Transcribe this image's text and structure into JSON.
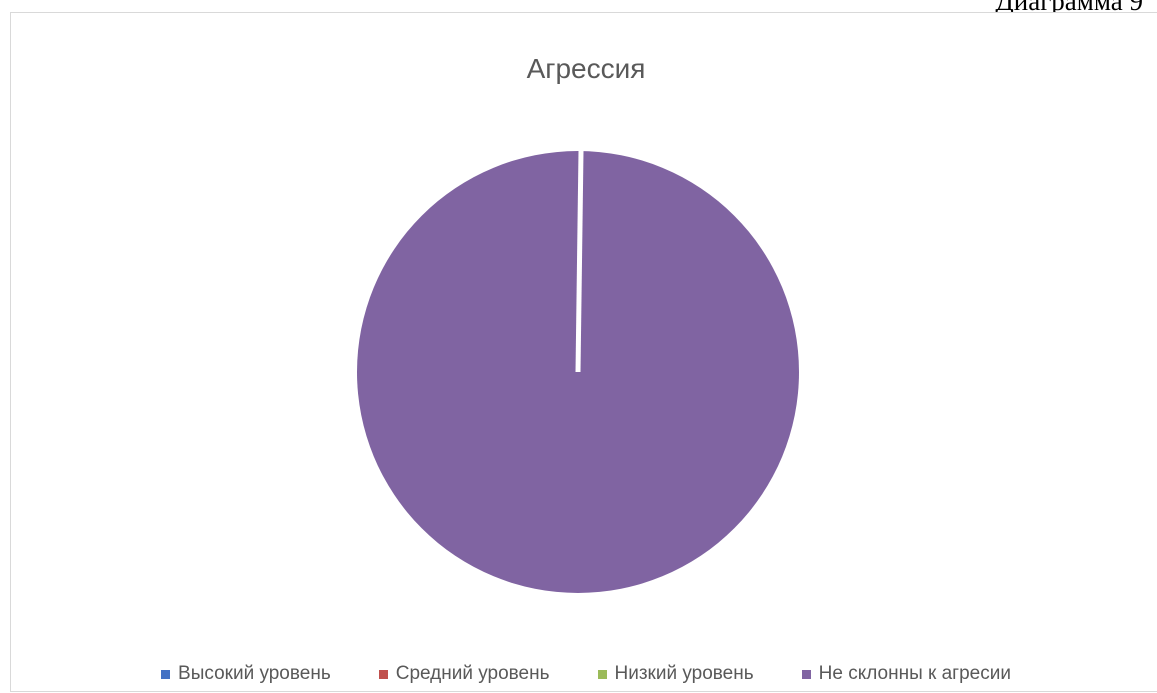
{
  "caption": "Диаграмма 9",
  "chart_data": {
    "type": "pie",
    "title": "Агрессия",
    "categories": [
      "Высокий уровень",
      "Средний уровень",
      "Низкий уровень",
      "Не склонны к агресии"
    ],
    "values": [
      0,
      0,
      0,
      100
    ],
    "colors": [
      "#4472c4",
      "#c0504d",
      "#9bbb59",
      "#8064a2"
    ],
    "legend_placement": "bottom",
    "grid": false
  }
}
